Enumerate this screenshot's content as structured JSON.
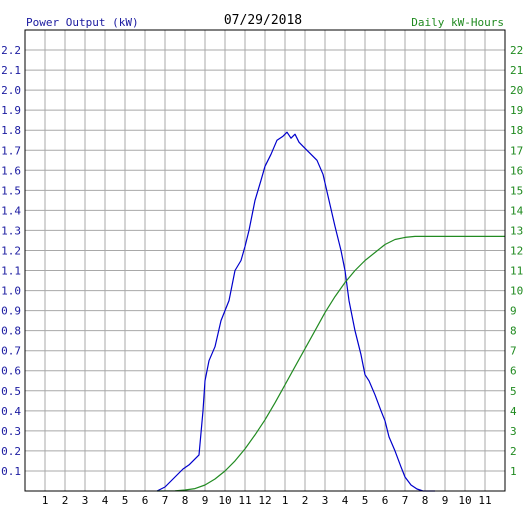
{
  "chart_data": {
    "type": "line",
    "title": "07/29/2018",
    "left_axis_label": "Power Output (kW)",
    "right_axis_label": "Daily kW-Hours",
    "x_ticks": [
      "1",
      "2",
      "3",
      "4",
      "5",
      "6",
      "7",
      "8",
      "9",
      "10",
      "11",
      "12",
      "1",
      "2",
      "3",
      "4",
      "5",
      "6",
      "7",
      "8",
      "9",
      "10",
      "11"
    ],
    "xlim": [
      0,
      24
    ],
    "left_ylim": [
      0,
      2.3
    ],
    "left_ticks": [
      "0.1",
      "0.2",
      "0.3",
      "0.4",
      "0.5",
      "0.6",
      "0.7",
      "0.8",
      "0.9",
      "1.0",
      "1.1",
      "1.2",
      "1.3",
      "1.4",
      "1.5",
      "1.6",
      "1.7",
      "1.8",
      "1.9",
      "2.0",
      "2.1",
      "2.2"
    ],
    "right_ylim": [
      0,
      23
    ],
    "right_ticks": [
      "1",
      "2",
      "3",
      "4",
      "5",
      "6",
      "7",
      "8",
      "9",
      "10",
      "11",
      "12",
      "13",
      "14",
      "15",
      "16",
      "17",
      "18",
      "19",
      "20",
      "21",
      "22"
    ],
    "grid": true,
    "series": [
      {
        "axis": "left",
        "color": "#0000cc",
        "x": [
          6.6,
          7.0,
          7.3,
          7.6,
          7.9,
          8.2,
          8.5,
          8.7,
          8.9,
          9.0,
          9.2,
          9.5,
          9.8,
          10.0,
          10.2,
          10.5,
          10.8,
          11.0,
          11.2,
          11.5,
          11.8,
          12.0,
          12.3,
          12.6,
          12.9,
          13.1,
          13.3,
          13.5,
          13.7,
          13.9,
          14.1,
          14.3,
          14.6,
          14.9,
          15.2,
          15.5,
          15.8,
          16.0,
          16.2,
          16.5,
          16.8,
          17.0,
          17.2,
          17.5,
          17.8,
          18.0,
          18.2,
          18.5,
          18.8,
          19.0,
          19.3,
          19.6,
          19.9,
          20.2,
          20.5
        ],
        "y": [
          0.0,
          0.02,
          0.05,
          0.08,
          0.11,
          0.13,
          0.16,
          0.18,
          0.4,
          0.55,
          0.65,
          0.72,
          0.85,
          0.9,
          0.95,
          1.1,
          1.15,
          1.22,
          1.3,
          1.45,
          1.55,
          1.62,
          1.68,
          1.75,
          1.77,
          1.79,
          1.76,
          1.78,
          1.74,
          1.72,
          1.7,
          1.68,
          1.65,
          1.58,
          1.45,
          1.32,
          1.2,
          1.1,
          0.95,
          0.8,
          0.68,
          0.58,
          0.55,
          0.48,
          0.4,
          0.35,
          0.27,
          0.2,
          0.12,
          0.07,
          0.03,
          0.01,
          0.0,
          0.0,
          0.0
        ]
      },
      {
        "axis": "right",
        "color": "#228b22",
        "x": [
          6.6,
          7.5,
          8.0,
          8.5,
          9.0,
          9.5,
          10.0,
          10.5,
          11.0,
          11.5,
          12.0,
          12.5,
          13.0,
          13.5,
          14.0,
          14.5,
          15.0,
          15.5,
          16.0,
          16.5,
          17.0,
          17.5,
          18.0,
          18.5,
          19.0,
          19.5,
          20.0,
          20.5,
          21.0,
          22.0,
          23.0,
          24.0
        ],
        "y": [
          0.0,
          0.01,
          0.05,
          0.12,
          0.3,
          0.6,
          1.0,
          1.5,
          2.1,
          2.8,
          3.55,
          4.4,
          5.3,
          6.2,
          7.1,
          8.0,
          8.9,
          9.7,
          10.4,
          11.0,
          11.5,
          11.9,
          12.3,
          12.55,
          12.65,
          12.7,
          12.7,
          12.7,
          12.7,
          12.7,
          12.7,
          12.7
        ]
      }
    ]
  }
}
